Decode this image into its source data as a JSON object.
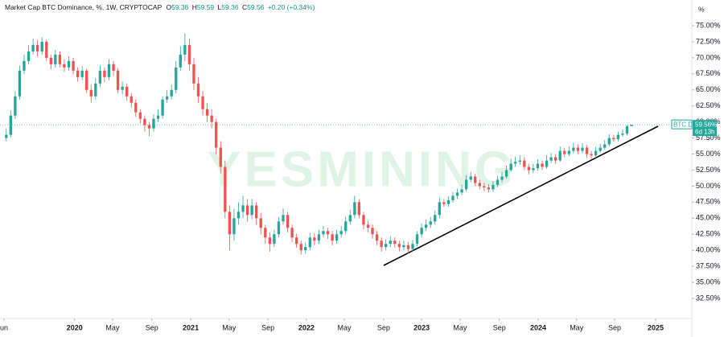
{
  "chart_data": {
    "type": "candlestick",
    "title": "Market Cap BTC Dominance, %, 1W, CRYPTOCAP",
    "ohlc_letters": [
      "O",
      "H",
      "L",
      "C"
    ],
    "change_label": "+0.20 (+0.34%)",
    "axis_unit": "%",
    "symbol": "BTC.D",
    "last_label": "59.56%",
    "countdown": "6d 13h",
    "watermark": "YESMINING",
    "up_color": "#26a69a",
    "down_color": "#ef5350",
    "open": [
      57.5,
      58,
      61,
      64,
      68,
      69.5,
      71,
      72,
      71,
      72.5,
      70,
      69,
      70.5,
      69,
      68.5,
      69.5,
      68,
      67,
      68,
      65,
      64,
      66,
      68,
      67,
      69,
      68,
      65,
      65.5,
      64,
      63,
      61.5,
      60.5,
      59.5,
      59,
      60.5,
      61,
      63.5,
      64,
      65,
      68.5,
      70.5,
      72,
      69,
      66,
      64,
      62,
      61,
      60,
      56,
      53,
      46,
      42.5,
      45,
      46,
      47,
      45.5,
      47,
      45,
      43.5,
      42,
      41,
      42.5,
      44.5,
      45.5,
      43.5,
      42,
      41,
      40,
      40.5,
      42,
      41.5,
      42.5,
      43,
      42.5,
      41.5,
      42.5,
      43,
      44.5,
      45.5,
      47.5,
      45.5,
      44,
      43.5,
      42.5,
      41.5,
      40.5,
      41,
      41.5,
      41,
      40.5,
      40.8,
      40.2,
      41,
      42.5,
      43.5,
      44,
      44.5,
      45.5,
      47.5,
      47.2,
      47.8,
      48.5,
      49,
      49.5,
      51,
      51.5,
      50.5,
      50,
      49.8,
      49.5,
      50.2,
      51,
      51.5,
      52.5,
      53.5,
      53.8,
      54,
      53,
      52.5,
      52.8,
      53.5,
      53,
      54,
      54.5,
      54,
      55.5,
      55,
      55.5,
      56,
      55.5,
      56,
      55,
      54.8,
      55.5,
      56,
      56.5,
      57.5,
      57.3,
      58,
      58.2,
      59.36
    ],
    "high": [
      59,
      61.8,
      64.8,
      68.8,
      70.5,
      72,
      73,
      72.8,
      73.2,
      72.8,
      70.5,
      71.2,
      71,
      69.8,
      70.2,
      70,
      68.5,
      68.7,
      68.3,
      65.8,
      66.8,
      68.8,
      68.5,
      69.8,
      69.5,
      68.4,
      66.3,
      66,
      64.5,
      63.5,
      62,
      61,
      60,
      61.2,
      62,
      64,
      65,
      65.8,
      69.5,
      71.8,
      73.8,
      73,
      70,
      67,
      64.8,
      63,
      62,
      60.5,
      57,
      54,
      47,
      46.5,
      47.5,
      48.5,
      48,
      48,
      47.5,
      45.8,
      44,
      42.8,
      43.2,
      45.2,
      46.5,
      46,
      44,
      42.6,
      41.5,
      41.2,
      42.7,
      42.6,
      43.2,
      43.8,
      43.5,
      43,
      43.2,
      43.8,
      45.2,
      46.3,
      48.5,
      48,
      46,
      44.6,
      44,
      43,
      42,
      41.7,
      42.2,
      42,
      41.5,
      41.5,
      41.3,
      41.6,
      43,
      44.2,
      44.8,
      45.2,
      46.2,
      48.2,
      48,
      48.4,
      49.1,
      49.6,
      50.2,
      51.7,
      52.2,
      51.9,
      51,
      50.5,
      50.3,
      50.8,
      51.6,
      52.2,
      53.2,
      54.3,
      54.6,
      54.8,
      54.5,
      53.5,
      53.5,
      54.2,
      54,
      54.8,
      55.2,
      55,
      56.2,
      56,
      56.2,
      56.8,
      56.5,
      56.7,
      56.4,
      55.5,
      56.1,
      56.6,
      57.2,
      58.1,
      58,
      58.5,
      58.8,
      59.5,
      59.59
    ],
    "low": [
      57,
      57.6,
      60.5,
      63.5,
      67.5,
      69,
      70.5,
      70.2,
      70.5,
      69.5,
      68.2,
      68.5,
      68.5,
      67.8,
      68,
      67.4,
      66.3,
      66.5,
      64.5,
      63,
      63.5,
      65.5,
      66.2,
      66.5,
      67.2,
      64.5,
      64.3,
      63.3,
      62.2,
      60.8,
      59.8,
      58.5,
      57.8,
      58.5,
      60,
      60.5,
      63,
      63.5,
      64.5,
      68,
      69.5,
      68,
      65,
      63,
      61,
      60,
      59,
      55,
      52,
      45,
      40,
      41.5,
      44,
      45,
      44.5,
      44.8,
      44,
      42.5,
      41,
      39.8,
      40.5,
      42,
      44,
      42.8,
      41.3,
      40.4,
      39.3,
      39.5,
      40,
      40.8,
      41,
      42,
      41.8,
      40.8,
      41,
      42,
      42.5,
      44,
      45,
      45,
      43.3,
      42.8,
      41.8,
      40.8,
      39.8,
      40,
      40.5,
      40.4,
      39.8,
      40,
      39.5,
      39.8,
      40.6,
      42,
      43,
      43.5,
      44,
      45,
      46.8,
      46.8,
      47.4,
      48,
      48.6,
      49.2,
      50.6,
      50,
      49.5,
      49.2,
      49,
      49.1,
      49.8,
      50.6,
      51.2,
      52.2,
      53,
      53.3,
      52.5,
      51.8,
      52,
      52.4,
      52.5,
      52.7,
      53.6,
      53.5,
      53.8,
      54.5,
      54.7,
      55.1,
      55,
      55.1,
      54.5,
      54.3,
      54.4,
      55.2,
      55.7,
      56.2,
      56.9,
      57,
      57.7,
      57.9,
      59.36
    ],
    "close": [
      58,
      61,
      64,
      68,
      69.5,
      71,
      72,
      71,
      72.5,
      70,
      69,
      70.5,
      69,
      68.5,
      69.5,
      68,
      67,
      68,
      65,
      64,
      66,
      68,
      67,
      69,
      68,
      65,
      65.5,
      64,
      63,
      61.5,
      60.5,
      59.5,
      59,
      60.5,
      61,
      63.5,
      64,
      65,
      68.5,
      70.5,
      72,
      69,
      66,
      64,
      62,
      61,
      60,
      56,
      53,
      46,
      42.5,
      45,
      46,
      47,
      45.5,
      47,
      45,
      43.5,
      42,
      41,
      42.5,
      44.5,
      45.5,
      43.5,
      42,
      41,
      40,
      40.5,
      42,
      41.5,
      42.5,
      43,
      42.5,
      41.5,
      42.5,
      43,
      44.5,
      45.5,
      47.5,
      45.5,
      44,
      43.5,
      42.5,
      41.5,
      40.5,
      41,
      41.5,
      41,
      40.5,
      40.8,
      40.2,
      41,
      42.5,
      43.5,
      44,
      44.5,
      45.5,
      47.5,
      47.2,
      47.8,
      48.5,
      49,
      49.5,
      51,
      51.5,
      50.5,
      50,
      49.8,
      49.5,
      50.2,
      51,
      51.5,
      52.5,
      53.5,
      53.8,
      54,
      53,
      52.5,
      52.8,
      53.5,
      53,
      54,
      54.5,
      54,
      55.5,
      55,
      55.5,
      56,
      55.5,
      56,
      55,
      54.8,
      55.5,
      56,
      56.5,
      57.5,
      57.3,
      58,
      58.2,
      59.36,
      59.56
    ],
    "xlim": [
      -1.4,
      153.5
    ],
    "xticks": [
      {
        "value": -0.5,
        "label": "un"
      },
      {
        "value": 15.3,
        "label": "2020"
      },
      {
        "value": 23.8,
        "label": "May"
      },
      {
        "value": 32.6,
        "label": "Sep"
      },
      {
        "value": 41.3,
        "label": "2021"
      },
      {
        "value": 49.9,
        "label": "May"
      },
      {
        "value": 58.6,
        "label": "Sep"
      },
      {
        "value": 67.2,
        "label": "2022"
      },
      {
        "value": 75.7,
        "label": "May"
      },
      {
        "value": 84.5,
        "label": "Sep"
      },
      {
        "value": 93.0,
        "label": "2023"
      },
      {
        "value": 101.6,
        "label": "May"
      },
      {
        "value": 110.4,
        "label": "Sep"
      },
      {
        "value": 119.1,
        "label": "2024"
      },
      {
        "value": 127.7,
        "label": "May"
      },
      {
        "value": 136.2,
        "label": "Sep"
      },
      {
        "value": 145.4,
        "label": "2025"
      }
    ],
    "ylim": [
      29.37,
      79.01
    ],
    "yticks": [
      {
        "value": 32.5,
        "label": "32.50%"
      },
      {
        "value": 35,
        "label": "35.00%"
      },
      {
        "value": 37.5,
        "label": "37.50%"
      },
      {
        "value": 40,
        "label": "40.00%"
      },
      {
        "value": 42.5,
        "label": "42.50%"
      },
      {
        "value": 45,
        "label": "45.00%"
      },
      {
        "value": 47.5,
        "label": "47.50%"
      },
      {
        "value": 50,
        "label": "50.00%"
      },
      {
        "value": 52.5,
        "label": "52.50%"
      },
      {
        "value": 55,
        "label": "55.00%"
      },
      {
        "value": 57.5,
        "label": "57.50%"
      },
      {
        "value": 60,
        "label": "60.00%"
      },
      {
        "value": 62.5,
        "label": "62.50%"
      },
      {
        "value": 65,
        "label": "65.00%"
      },
      {
        "value": 67.5,
        "label": "67.50%"
      },
      {
        "value": 70,
        "label": "70.00%"
      },
      {
        "value": 72.5,
        "label": "72.50%"
      },
      {
        "value": 75,
        "label": "75.00%"
      }
    ]
  }
}
